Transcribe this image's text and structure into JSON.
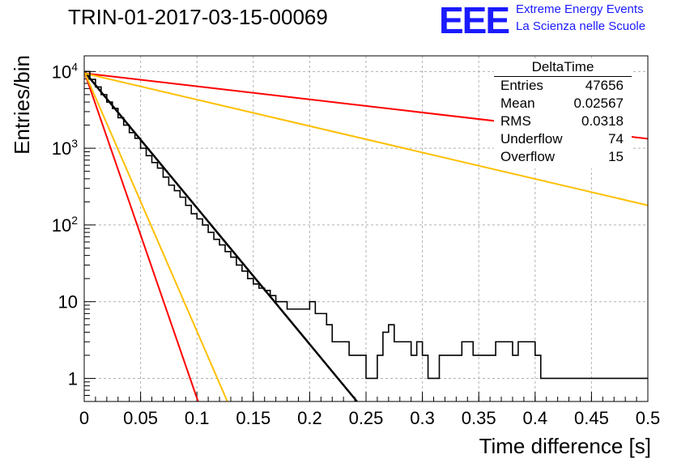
{
  "header": {
    "title": "TRIN-01-2017-03-15-00069",
    "logo_text": "EEE",
    "logo_line1": "Extreme Energy Events",
    "logo_line2": "La Scienza nelle Scuole",
    "logo_color": "#1a1aff"
  },
  "stats": {
    "name": "DeltaTime",
    "rows": [
      {
        "label": "Entries",
        "value": "47656"
      },
      {
        "label": "Mean",
        "value": "0.02567"
      },
      {
        "label": "RMS",
        "value": "0.0318"
      },
      {
        "label": "Underflow",
        "value": "74"
      },
      {
        "label": "Overflow",
        "value": "15"
      }
    ]
  },
  "chart_data": {
    "type": "line",
    "title": "TRIN-01-2017-03-15-00069",
    "xlabel": "Time difference [s]",
    "ylabel": "Entries/bin",
    "xlim": [
      0,
      0.5
    ],
    "ylim": [
      0.5,
      16000
    ],
    "yscale": "log",
    "grid": true,
    "xticks": [
      "0",
      "0.05",
      "0.1",
      "0.15",
      "0.2",
      "0.25",
      "0.3",
      "0.35",
      "0.4",
      "0.45",
      "0.5"
    ],
    "yticks": [
      {
        "value": 1,
        "label": "1"
      },
      {
        "value": 10,
        "label": "10"
      },
      {
        "value": 100,
        "label": "10^2"
      },
      {
        "value": 1000,
        "label": "10^3"
      },
      {
        "value": 10000,
        "label": "10^4"
      }
    ],
    "histogram": {
      "bin_width": 0.005,
      "color": "#000000",
      "values": [
        10000,
        7900,
        6300,
        5000,
        4000,
        3300,
        2500,
        2000,
        1600,
        1350,
        1000,
        800,
        650,
        550,
        420,
        330,
        280,
        230,
        180,
        140,
        120,
        100,
        80,
        65,
        55,
        45,
        38,
        30,
        25,
        20,
        17,
        15,
        14,
        12,
        10,
        10,
        8,
        8,
        8,
        8,
        10,
        7,
        7,
        5,
        3,
        3,
        3,
        2,
        2,
        2,
        1,
        1,
        2,
        4,
        5,
        3,
        3,
        3,
        2,
        3,
        2,
        1,
        1,
        2,
        2,
        2,
        2,
        3,
        3,
        2,
        2,
        2,
        2,
        3,
        3,
        3,
        2,
        3,
        3,
        3,
        2,
        1,
        1,
        1,
        1,
        1,
        1,
        1,
        1,
        1,
        1,
        1,
        1,
        1,
        1,
        1,
        1,
        1,
        1,
        1
      ]
    },
    "series": [
      {
        "color": "#000000",
        "x": [
          0,
          0.242
        ],
        "values": [
          10000,
          0.5
        ]
      },
      {
        "color": "#ff0000",
        "x": [
          0,
          0.101
        ],
        "values": [
          10000,
          0.5
        ]
      },
      {
        "color": "#ffbf00",
        "x": [
          0,
          0.127
        ],
        "values": [
          10000,
          0.5
        ]
      },
      {
        "color": "#ff0000",
        "x": [
          0,
          0.5
        ],
        "values": [
          9500,
          1330
        ]
      },
      {
        "color": "#ffbf00",
        "x": [
          0,
          0.5
        ],
        "values": [
          9500,
          180
        ]
      }
    ]
  }
}
